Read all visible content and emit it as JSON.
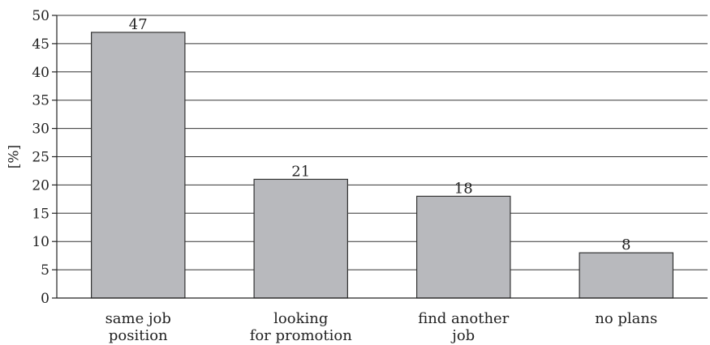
{
  "chart_data": {
    "type": "bar",
    "title": "",
    "xlabel": "",
    "ylabel": "[%]",
    "categories": [
      [
        "same job",
        "position"
      ],
      [
        "looking",
        "for promotion"
      ],
      [
        "find another",
        "job"
      ],
      [
        "no plans"
      ]
    ],
    "values": [
      47,
      21,
      18,
      8
    ],
    "data_labels": [
      "47",
      "21",
      "18",
      "8"
    ],
    "ylim": [
      0,
      50
    ],
    "yticks": [
      0,
      5,
      10,
      15,
      20,
      25,
      30,
      35,
      40,
      45,
      50
    ],
    "grid": true,
    "legend": "none",
    "colors": {
      "bar_fill": "#b8b9bd",
      "bar_stroke": "#333333",
      "grid": "#333333"
    }
  }
}
